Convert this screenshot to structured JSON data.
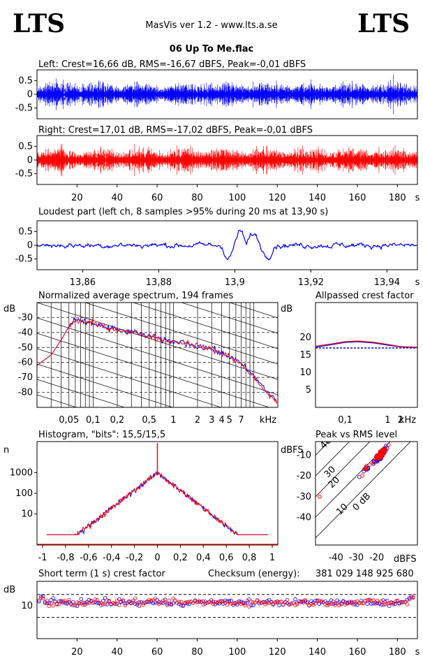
{
  "header": {
    "logo_left": "LTS",
    "logo_right": "LTS",
    "app_title": "MasVis ver 1.2 - www.lts.a.se",
    "file_title": "06 Up To Me.flac"
  },
  "colors": {
    "left": "#0000ff",
    "right": "#ff0000",
    "axis": "#000000"
  },
  "chart_data": [
    {
      "id": "left_wave",
      "type": "line",
      "title": "Left: Crest=16,66 dB, RMS=-16,67 dBFS, Peak=-0,01 dBFS",
      "yticks": [
        "0.5",
        "0",
        "-0.5"
      ],
      "ylim": [
        -1,
        1
      ],
      "xlim": [
        0,
        190
      ],
      "series": [
        {
          "color": "#0000ff"
        }
      ]
    },
    {
      "id": "right_wave",
      "type": "line",
      "title": "Right: Crest=17,01 dB, RMS=-17,02 dBFS, Peak=-0,01 dBFS",
      "yticks": [
        "0.5",
        "0",
        "-0.5"
      ],
      "ylim": [
        -1,
        1
      ],
      "xlim": [
        0,
        190
      ],
      "xticks": [
        "20",
        "40",
        "60",
        "80",
        "100",
        "120",
        "140",
        "160",
        "180"
      ],
      "xunit": "s",
      "series": [
        {
          "color": "#ff0000"
        }
      ]
    },
    {
      "id": "loudest",
      "type": "line",
      "title": "Loudest part (left  ch, 8 samples >95% during 20 ms at 13,90 s)",
      "yticks": [
        "0.5",
        "0",
        "-0.5"
      ],
      "ylim": [
        -1,
        1
      ],
      "xlim": [
        13.848,
        13.948
      ],
      "xticks": [
        "13,86",
        "13,88",
        "13,9",
        "13,92",
        "13,94"
      ],
      "xunit": "s",
      "series": [
        {
          "color": "#0000ff"
        }
      ]
    },
    {
      "id": "spectrum",
      "type": "line",
      "title": "Normalized average spectrum, 194 frames",
      "ylabel": "dB",
      "yticks": [
        "-30",
        "-40",
        "-50",
        "-60",
        "-70",
        "-80"
      ],
      "ylim": [
        -90,
        -20
      ],
      "xticks": [
        "0,05",
        "0,1",
        "0,2",
        "0,5",
        "1",
        "2",
        "3",
        "4",
        "5",
        "7"
      ],
      "xunit": "kHz",
      "series": [
        {
          "color": "#0000ff",
          "x": [
            0.02,
            0.03,
            0.04,
            0.05,
            0.06,
            0.08,
            0.1,
            0.15,
            0.2,
            0.3,
            0.5,
            0.7,
            1,
            1.5,
            2,
            3,
            4,
            5,
            7,
            10,
            15,
            20
          ],
          "y": [
            -62,
            -55,
            -45,
            -36,
            -32,
            -33,
            -34,
            -37,
            -38,
            -40,
            -42,
            -45,
            -46,
            -47,
            -49,
            -51,
            -54,
            -56,
            -61,
            -69,
            -80,
            -86
          ]
        },
        {
          "color": "#ff0000",
          "x": [
            0.02,
            0.03,
            0.04,
            0.05,
            0.06,
            0.08,
            0.1,
            0.15,
            0.2,
            0.3,
            0.5,
            0.7,
            1,
            1.5,
            2,
            3,
            4,
            5,
            7,
            10,
            15,
            20
          ],
          "y": [
            -62,
            -55,
            -45,
            -36,
            -32,
            -33,
            -34,
            -37,
            -38,
            -40,
            -42,
            -45,
            -46,
            -47,
            -49,
            -51,
            -54,
            -56,
            -61,
            -70,
            -81,
            -87
          ]
        }
      ]
    },
    {
      "id": "crest_allpass",
      "type": "line",
      "title": "Allpassed crest factor",
      "ylabel": "dB",
      "yticks": [
        "20",
        "15",
        "10",
        "5"
      ],
      "ylim": [
        0,
        30
      ],
      "xticks": [
        "0,1",
        "1",
        "2"
      ],
      "xunit": "kHz",
      "series": [
        {
          "color": "#0000ff",
          "x": [
            0.02,
            0.05,
            0.1,
            0.2,
            0.5,
            1,
            2,
            5
          ],
          "y": [
            17.2,
            18.0,
            18.6,
            18.8,
            18.4,
            17.8,
            17.3,
            17.1
          ]
        },
        {
          "color": "#ff0000",
          "x": [
            0.02,
            0.05,
            0.1,
            0.2,
            0.5,
            1,
            2,
            5
          ],
          "y": [
            17.5,
            18.2,
            18.8,
            19.0,
            18.6,
            18.0,
            17.4,
            17.2
          ]
        }
      ]
    },
    {
      "id": "histogram",
      "type": "line",
      "title": "Histogram, \"bits\": 15,5/15,5",
      "ylabel": "n",
      "yticks": [
        "1000",
        "100",
        "10"
      ],
      "xticks": [
        "-1",
        "-0,8",
        "-0,6",
        "-0,4",
        "-0,2",
        "0",
        "0,2",
        "0,4",
        "0,6",
        "0,8",
        "1"
      ],
      "series": [
        {
          "color": "#0000ff"
        },
        {
          "color": "#ff0000"
        }
      ]
    },
    {
      "id": "peak_rms",
      "type": "scatter",
      "title": "Peak vs RMS level",
      "ylabel": "dBFS",
      "xlabel": "dBFS",
      "yticks": [
        "-10",
        "-20",
        "-30",
        "-40"
      ],
      "xticks": [
        "-40",
        "-30",
        "-20"
      ],
      "diag_labels": [
        "40",
        "30",
        "20",
        "10",
        "0 dB"
      ],
      "series": [
        {
          "color": "#0000ff"
        },
        {
          "color": "#ff0000"
        }
      ]
    },
    {
      "id": "short_crest",
      "type": "scatter",
      "title": "Short term (1 s) crest factor",
      "checksum_label": "Checksum (energy):",
      "checksum_value": "381 029 148 925 680",
      "ylabel": "dB",
      "yticks": [
        "10"
      ],
      "xticks": [
        "20",
        "40",
        "60",
        "80",
        "100",
        "120",
        "140",
        "160",
        "180"
      ],
      "xunit": "s",
      "series": [
        {
          "color": "#0000ff"
        },
        {
          "color": "#ff0000"
        }
      ]
    }
  ]
}
